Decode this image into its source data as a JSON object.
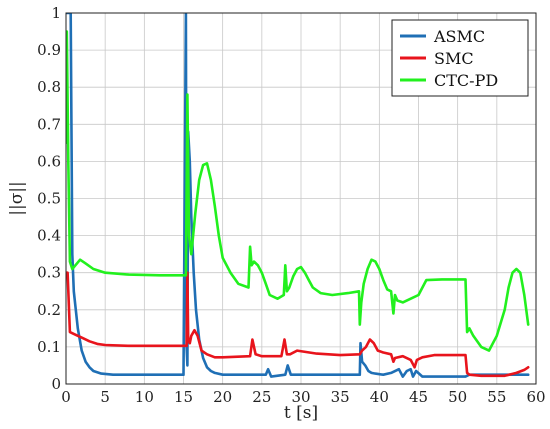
{
  "chart_data": {
    "type": "line",
    "xlabel": "t [s]",
    "ylabel": "||σ||",
    "xlim": [
      0,
      60
    ],
    "ylim": [
      0,
      1
    ],
    "xticks": [
      0,
      5,
      10,
      15,
      20,
      25,
      30,
      35,
      40,
      45,
      50,
      55,
      60
    ],
    "yticks": [
      0,
      0.1,
      0.2,
      0.3,
      0.4,
      0.5,
      0.6,
      0.7,
      0.8,
      0.9,
      1
    ],
    "grid": true,
    "legend_position": "top-right",
    "series": [
      {
        "name": "ASMC",
        "color": "#1f6fb5",
        "x": [
          0,
          0.3,
          0.6,
          0.8,
          1.0,
          1.5,
          2.0,
          2.5,
          3.0,
          3.5,
          4.5,
          6,
          10,
          15.0,
          15.3,
          15.4,
          15.5,
          15.6,
          15.8,
          16.0,
          16.3,
          16.6,
          17.0,
          17.5,
          18.0,
          18.5,
          19.0,
          20.0,
          23.0,
          25.5,
          25.8,
          26.2,
          28.0,
          28.3,
          28.7,
          30.0,
          35.0,
          37.5,
          37.6,
          37.8,
          38.2,
          38.6,
          39.0,
          39.5,
          40.5,
          41.5,
          42.5,
          43.0,
          43.5,
          44.0,
          44.3,
          44.7,
          45.5,
          51.0,
          51.5,
          52.5,
          55.0,
          59.0
        ],
        "y": [
          1,
          1,
          1,
          0.35,
          0.25,
          0.15,
          0.09,
          0.06,
          0.045,
          0.035,
          0.028,
          0.025,
          0.025,
          0.025,
          1,
          0.1,
          0.05,
          0.68,
          0.6,
          0.45,
          0.3,
          0.2,
          0.12,
          0.07,
          0.045,
          0.035,
          0.03,
          0.025,
          0.025,
          0.025,
          0.04,
          0.02,
          0.025,
          0.05,
          0.025,
          0.025,
          0.025,
          0.025,
          0.11,
          0.06,
          0.05,
          0.035,
          0.03,
          0.028,
          0.025,
          0.03,
          0.04,
          0.02,
          0.035,
          0.04,
          0.02,
          0.035,
          0.02,
          0.02,
          0.025,
          0.025,
          0.025,
          0.025
        ]
      },
      {
        "name": "SMC",
        "color": "#e8141c",
        "x": [
          0,
          0.2,
          0.5,
          1.0,
          1.5,
          2.0,
          3.0,
          4.0,
          5.0,
          8.0,
          12.0,
          15.4,
          15.5,
          15.6,
          15.8,
          16.0,
          16.4,
          16.8,
          17.3,
          18.0,
          19.0,
          20.0,
          23.5,
          23.8,
          24.2,
          25.0,
          27.5,
          27.9,
          28.2,
          28.6,
          29.5,
          32.0,
          35.0,
          37.5,
          37.8,
          38.3,
          38.8,
          39.3,
          39.8,
          40.5,
          41.5,
          41.8,
          42.0,
          43.0,
          44.0,
          44.5,
          44.8,
          45.5,
          47.0,
          51.0,
          51.2,
          51.5,
          53.0,
          56.0,
          57.5,
          58.5,
          59.0
        ],
        "y": [
          0.3,
          0.3,
          0.14,
          0.135,
          0.13,
          0.125,
          0.115,
          0.108,
          0.105,
          0.103,
          0.103,
          0.103,
          0.3,
          0.12,
          0.11,
          0.13,
          0.145,
          0.13,
          0.09,
          0.08,
          0.072,
          0.072,
          0.075,
          0.12,
          0.08,
          0.075,
          0.075,
          0.12,
          0.08,
          0.08,
          0.09,
          0.082,
          0.078,
          0.08,
          0.09,
          0.1,
          0.12,
          0.11,
          0.09,
          0.085,
          0.08,
          0.06,
          0.07,
          0.075,
          0.065,
          0.045,
          0.065,
          0.072,
          0.078,
          0.078,
          0.03,
          0.025,
          0.022,
          0.022,
          0.03,
          0.038,
          0.045
        ]
      },
      {
        "name": "CTC-PD",
        "color": "#22f01e",
        "x": [
          0,
          0.1,
          0.3,
          0.5,
          0.8,
          1.2,
          1.8,
          2.5,
          3.5,
          5.0,
          8.0,
          12.0,
          15.3,
          15.5,
          15.7,
          16.0,
          16.5,
          17.0,
          17.5,
          18.0,
          18.5,
          19.0,
          19.5,
          20.0,
          21.0,
          22.0,
          23.3,
          23.5,
          23.7,
          24.0,
          24.5,
          25.0,
          25.5,
          26.0,
          27.0,
          27.8,
          28.0,
          28.2,
          28.5,
          29.0,
          29.5,
          30.0,
          30.5,
          31.0,
          31.5,
          32.5,
          34.0,
          36.0,
          37.4,
          37.5,
          37.7,
          38.0,
          38.5,
          39.0,
          39.5,
          40.0,
          40.5,
          41.0,
          41.5,
          41.8,
          42.0,
          42.3,
          43.0,
          44.0,
          45.0,
          46.0,
          48.0,
          50.0,
          51.0,
          51.2,
          51.5,
          52.0,
          53.0,
          54.0,
          55.0,
          56.0,
          56.5,
          57.0,
          57.5,
          58.0,
          58.5,
          59.0
        ],
        "y": [
          0.65,
          0.95,
          0.6,
          0.33,
          0.31,
          0.32,
          0.335,
          0.325,
          0.31,
          0.3,
          0.295,
          0.293,
          0.293,
          0.78,
          0.4,
          0.35,
          0.46,
          0.55,
          0.59,
          0.595,
          0.55,
          0.48,
          0.4,
          0.34,
          0.3,
          0.27,
          0.26,
          0.37,
          0.32,
          0.33,
          0.32,
          0.3,
          0.27,
          0.24,
          0.23,
          0.24,
          0.32,
          0.25,
          0.26,
          0.29,
          0.31,
          0.315,
          0.3,
          0.28,
          0.26,
          0.245,
          0.24,
          0.245,
          0.25,
          0.16,
          0.22,
          0.27,
          0.31,
          0.335,
          0.33,
          0.31,
          0.28,
          0.255,
          0.25,
          0.19,
          0.24,
          0.225,
          0.22,
          0.23,
          0.24,
          0.28,
          0.282,
          0.282,
          0.282,
          0.14,
          0.15,
          0.13,
          0.1,
          0.09,
          0.13,
          0.2,
          0.26,
          0.3,
          0.31,
          0.3,
          0.24,
          0.16
        ]
      }
    ]
  }
}
